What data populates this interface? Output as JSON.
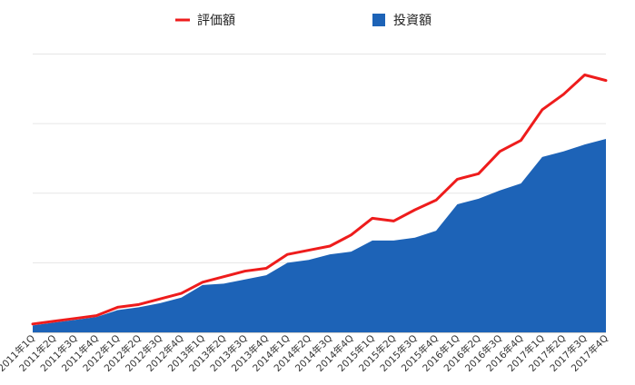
{
  "chart_data": {
    "type": "line",
    "title": "",
    "xlabel": "",
    "ylabel": "",
    "y_tick_labels_shown": false,
    "grid": true,
    "legend_position": "top",
    "ylim": [
      0,
      20
    ],
    "categories": [
      "2011年1Q",
      "2011年2Q",
      "2011年3Q",
      "2011年4Q",
      "2012年1Q",
      "2012年2Q",
      "2012年3Q",
      "2012年4Q",
      "2013年1Q",
      "2013年2Q",
      "2013年3Q",
      "2013年4Q",
      "2014年1Q",
      "2014年2Q",
      "2014年3Q",
      "2014年4Q",
      "2015年1Q",
      "2015年2Q",
      "2015年3Q",
      "2015年4Q",
      "2016年1Q",
      "2016年2Q",
      "2016年3Q",
      "2016年4Q",
      "2017年1Q",
      "2017年2Q",
      "2017年3Q",
      "2017年4Q"
    ],
    "series": [
      {
        "name": "評価額",
        "kind": "line",
        "color": "#ee1c1c",
        "values": [
          0.6,
          0.8,
          1.0,
          1.2,
          1.8,
          2.0,
          2.4,
          2.8,
          3.6,
          4.0,
          4.4,
          4.6,
          5.6,
          5.9,
          6.2,
          7.0,
          8.2,
          8.0,
          8.8,
          9.5,
          11.0,
          11.4,
          13.0,
          13.8,
          16.0,
          17.1,
          18.5,
          18.1
        ]
      },
      {
        "name": "投資額",
        "kind": "area",
        "color": "#1d63b7",
        "values": [
          0.5,
          0.7,
          0.9,
          1.1,
          1.6,
          1.8,
          2.1,
          2.5,
          3.4,
          3.5,
          3.8,
          4.1,
          5.0,
          5.2,
          5.6,
          5.8,
          6.6,
          6.6,
          6.8,
          7.3,
          9.2,
          9.6,
          10.2,
          10.7,
          12.6,
          13.0,
          13.5,
          13.9
        ]
      }
    ]
  }
}
